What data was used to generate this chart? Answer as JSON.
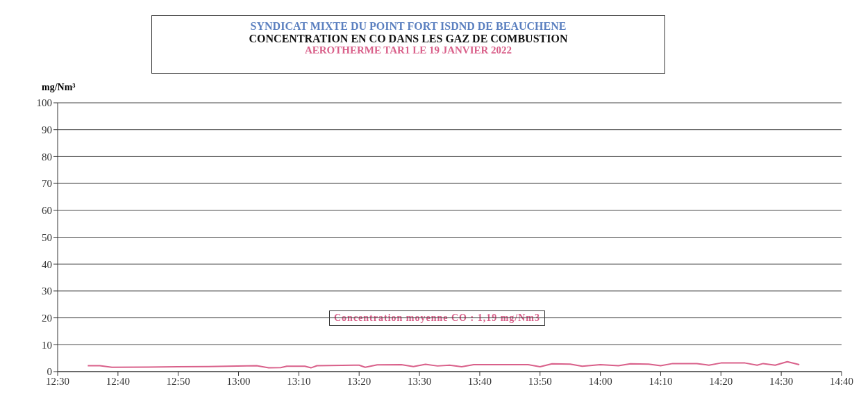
{
  "chart_data": {
    "type": "line",
    "title": "SYNDICAT MIXTE DU POINT FORT   ISDND DE BEAUCHENE",
    "subtitle": "CONCENTRATION EN CO DANS LES GAZ DE COMBUSTION",
    "ylabel": "mg/Nm³",
    "annotations": [
      "AEROTHERME TAR1   LE 19 JANVIER 2022",
      "Concentration moyenne CO : 1,19 mg/Nm3"
    ],
    "x": [
      12.5833,
      12.6167,
      12.65,
      12.75,
      12.9167,
      13.05,
      13.0833,
      13.1167,
      13.1333,
      13.1833,
      13.2,
      13.2167,
      13.3333,
      13.35,
      13.3833,
      13.45,
      13.4833,
      13.5167,
      13.55,
      13.5833,
      13.6167,
      13.65,
      13.8,
      13.8333,
      13.8667,
      13.9167,
      13.95,
      14.0,
      14.05,
      14.0833,
      14.1333,
      14.1667,
      14.2,
      14.2667,
      14.3,
      14.3333,
      14.4,
      14.4333,
      14.45,
      14.4833,
      14.5167,
      14.55
    ],
    "series": [
      {
        "color": "#d9608a",
        "values": [
          2.2,
          2.2,
          1.6,
          1.7,
          1.9,
          2.2,
          1.4,
          1.5,
          2.0,
          2.0,
          1.4,
          2.2,
          2.4,
          1.6,
          2.5,
          2.6,
          1.9,
          2.7,
          2.1,
          2.4,
          1.8,
          2.6,
          2.6,
          1.8,
          2.9,
          2.8,
          2.0,
          2.6,
          2.2,
          2.9,
          2.8,
          2.2,
          3.0,
          3.0,
          2.4,
          3.2,
          3.2,
          2.4,
          3.0,
          2.4,
          3.7,
          2.6
        ]
      }
    ],
    "xlim": [
      12.5,
      14.6667
    ],
    "xticks": [
      {
        "value": 12.5,
        "label": "12:30"
      },
      {
        "value": 12.6667,
        "label": "12:40"
      },
      {
        "value": 12.8333,
        "label": "12:50"
      },
      {
        "value": 13,
        "label": "13:00"
      },
      {
        "value": 13.1667,
        "label": "13:10"
      },
      {
        "value": 13.3333,
        "label": "13:20"
      },
      {
        "value": 13.5,
        "label": "13:30"
      },
      {
        "value": 13.6667,
        "label": "13:40"
      },
      {
        "value": 13.8333,
        "label": "13:50"
      },
      {
        "value": 14,
        "label": "14:00"
      },
      {
        "value": 14.1667,
        "label": "14:10"
      },
      {
        "value": 14.3333,
        "label": "14:20"
      },
      {
        "value": 14.5,
        "label": "14:30"
      },
      {
        "value": 14.6667,
        "label": "14:40"
      }
    ],
    "ylim": [
      0,
      100
    ],
    "yticks": [
      0,
      10,
      20,
      30,
      40,
      50,
      60,
      70,
      80,
      90,
      100
    ],
    "grid": "y",
    "legend": false,
    "marker": "none",
    "line_style": "solid"
  }
}
